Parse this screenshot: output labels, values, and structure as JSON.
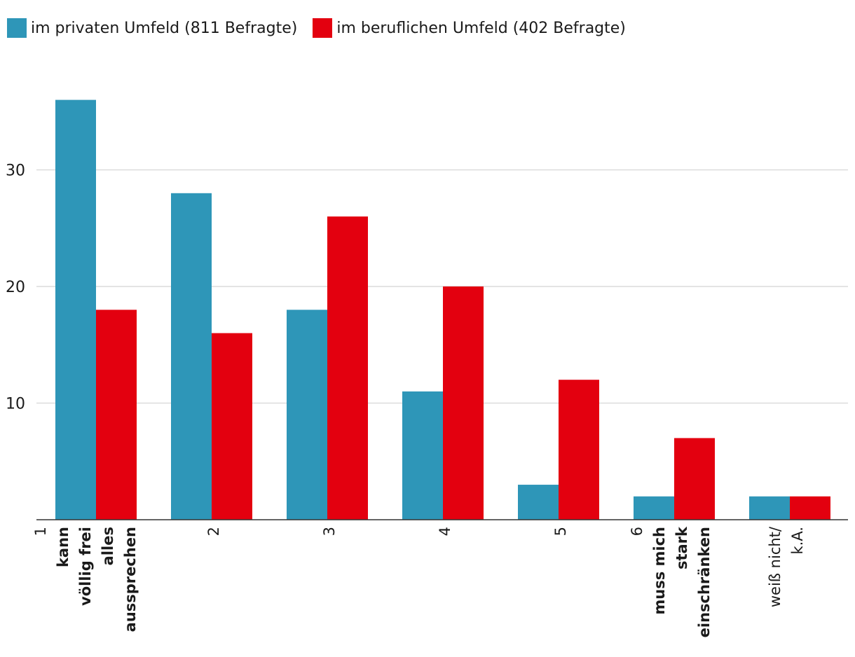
{
  "chart_data": {
    "type": "bar",
    "categories": [
      {
        "lines": [
          {
            "text": "1",
            "bold": false
          },
          {
            "text": "kann",
            "bold": true
          },
          {
            "text": "völlig frei",
            "bold": true
          },
          {
            "text": "alles",
            "bold": true
          },
          {
            "text": "aussprechen",
            "bold": true
          }
        ]
      },
      {
        "lines": [
          {
            "text": "2",
            "bold": false
          }
        ]
      },
      {
        "lines": [
          {
            "text": "3",
            "bold": false
          }
        ]
      },
      {
        "lines": [
          {
            "text": "4",
            "bold": false
          }
        ]
      },
      {
        "lines": [
          {
            "text": "5",
            "bold": false
          }
        ]
      },
      {
        "lines": [
          {
            "text": "6",
            "bold": false
          },
          {
            "text": "muss mich",
            "bold": true
          },
          {
            "text": "stark",
            "bold": true
          },
          {
            "text": "einschränken",
            "bold": true
          }
        ]
      },
      {
        "lines": [
          {
            "text": "weiß nicht/",
            "bold": false
          },
          {
            "text": "k.A.",
            "bold": false
          }
        ]
      }
    ],
    "series": [
      {
        "name": "im privaten Umfeld (811 Befragte)",
        "color": "#2e96b8",
        "values": [
          36,
          28,
          18,
          11,
          3,
          2,
          2
        ]
      },
      {
        "name": "im beruflichen Umfeld (402 Befragte)",
        "color": "#e3000f",
        "values": [
          18,
          16,
          26,
          20,
          12,
          7,
          2
        ]
      }
    ],
    "yticks": [
      10,
      20,
      30
    ],
    "ylim": [
      0,
      38
    ],
    "grid": true,
    "legend_position": "top-left"
  }
}
